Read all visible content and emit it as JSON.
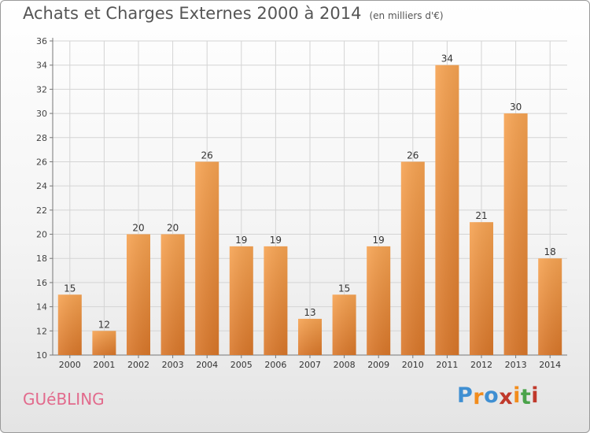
{
  "header": {
    "title": "Achats et Charges Externes 2000 à 2014",
    "subtitle": "(en milliers d'€)"
  },
  "footer": {
    "town": "GUéBLING",
    "logo_text": "Proxiti",
    "logo_colors": [
      "#3f8fd2",
      "#f28c1c",
      "#3f8fd2",
      "#c0392b",
      "#f28c1c",
      "#4aa34a",
      "#c0392b"
    ]
  },
  "chart_data": {
    "type": "bar",
    "categories": [
      "2000",
      "2001",
      "2002",
      "2003",
      "2004",
      "2005",
      "2006",
      "2007",
      "2008",
      "2009",
      "2010",
      "2011",
      "2012",
      "2013",
      "2014"
    ],
    "values": [
      15,
      12,
      20,
      20,
      26,
      19,
      19,
      13,
      15,
      19,
      26,
      34,
      21,
      30,
      18
    ],
    "ylim": [
      10,
      36
    ],
    "yticks": [
      10,
      12,
      14,
      16,
      18,
      20,
      22,
      24,
      26,
      28,
      30,
      32,
      34,
      36
    ],
    "grid": true,
    "bar_color_top": "#f6a352",
    "bar_color_bottom": "#d9772a",
    "legend": "none"
  }
}
